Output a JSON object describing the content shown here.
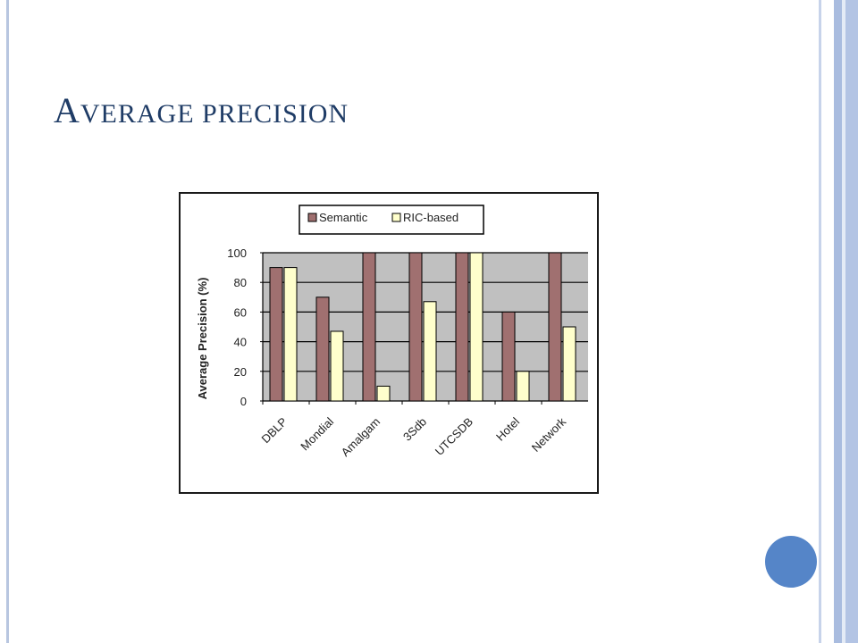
{
  "slide": {
    "title_cap": "A",
    "title_rest": "VERAGE PRECISION"
  },
  "chart_data": {
    "type": "bar",
    "title": "",
    "ylabel": "Average Precision (%)",
    "xlabel": "",
    "categories": [
      "DBLP",
      "Mondial",
      "Amalgam",
      "3Sdb",
      "UTCSDB",
      "Hotel",
      "Network"
    ],
    "series": [
      {
        "name": "Semantic",
        "values": [
          90,
          70,
          100,
          100,
          100,
          60,
          100
        ],
        "color": "#a07070"
      },
      {
        "name": "RIC-based",
        "values": [
          90,
          47,
          10,
          67,
          100,
          20,
          50
        ],
        "color": "#ffffcc"
      }
    ],
    "ylim": [
      0,
      100
    ],
    "yticks": [
      0,
      20,
      40,
      60,
      80,
      100
    ],
    "grid": true,
    "legend": "top",
    "plot_background": "#c0c0c0"
  },
  "colors": {
    "title": "#1f3c66",
    "accent_circle": "#5585c8"
  }
}
